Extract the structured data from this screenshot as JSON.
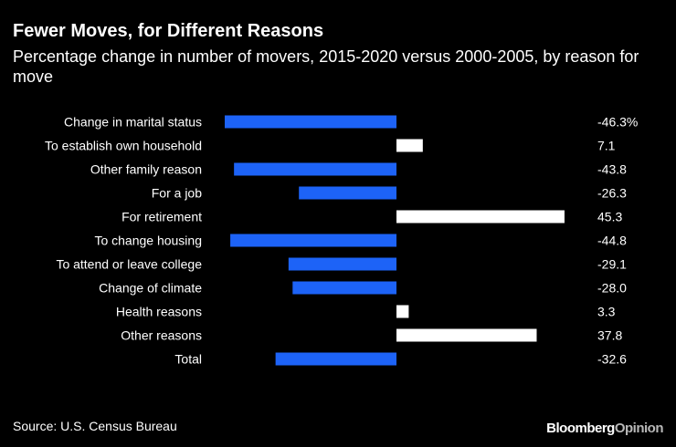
{
  "title": "Fewer Moves, for Different Reasons",
  "subtitle": "Percentage change in number of movers, 2015-2020 versus 2000-2005, by reason for move",
  "source": "Source: U.S. Census Bureau",
  "brand": {
    "part1": "Bloomberg",
    "part2": "Opinion"
  },
  "colors": {
    "negative": "#1d63f7",
    "positive": "#ffffff",
    "background": "#000000",
    "text": "#ffffff"
  },
  "chart_data": {
    "type": "bar",
    "orientation": "horizontal",
    "title": "Fewer Moves, for Different Reasons",
    "subtitle": "Percentage change in number of movers, 2015-2020 versus 2000-2005, by reason for move",
    "xlabel": "",
    "ylabel": "",
    "xlim": [
      -46.3,
      45.3
    ],
    "grid": false,
    "categories": [
      "Change in marital status",
      "To establish own household",
      "Other family reason",
      "For a job",
      "For retirement",
      "To change housing",
      "To attend or leave college",
      "Change of climate",
      "Health reasons",
      "Other reasons",
      "Total"
    ],
    "values": [
      -46.3,
      7.1,
      -43.8,
      -26.3,
      45.3,
      -44.8,
      -29.1,
      -28.0,
      3.3,
      37.8,
      -32.6
    ],
    "value_labels": [
      "-46.3%",
      "7.1",
      "-43.8",
      "-26.3",
      "45.3",
      "-44.8",
      "-29.1",
      "-28.0",
      "3.3",
      "37.8",
      "-32.6"
    ]
  }
}
